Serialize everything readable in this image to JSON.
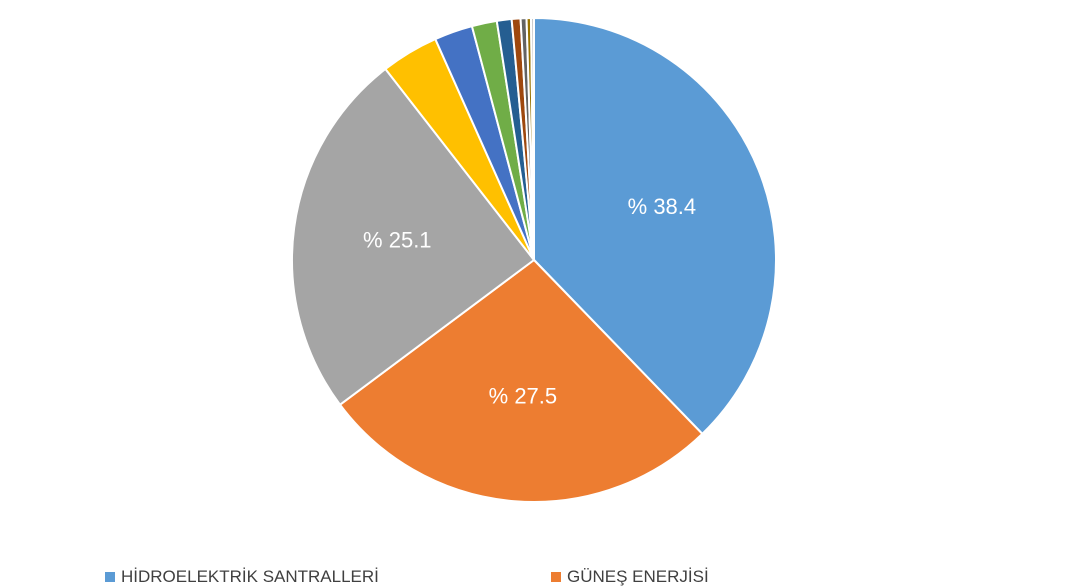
{
  "chart_data": {
    "type": "pie",
    "series": [
      {
        "name": "HİDROELEKTRİK SANTRALLERİ",
        "value": 38.4,
        "label": "% 38.4",
        "color": "#5B9BD5"
      },
      {
        "name": "GÜNEŞ ENERJİSİ",
        "value": 27.5,
        "label": "% 27.5",
        "color": "#ED7D31"
      },
      {
        "name": "",
        "value": 25.1,
        "label": "% 25.1",
        "color": "#A5A5A5"
      },
      {
        "name": "",
        "value": 3.9,
        "label": "",
        "color": "#FFC000"
      },
      {
        "name": "",
        "value": 2.6,
        "label": "",
        "color": "#4472C4"
      },
      {
        "name": "",
        "value": 1.7,
        "label": "",
        "color": "#70AD47"
      },
      {
        "name": "",
        "value": 1.0,
        "label": "",
        "color": "#255E91"
      },
      {
        "name": "",
        "value": 0.6,
        "label": "",
        "color": "#9E480E"
      },
      {
        "name": "",
        "value": 0.4,
        "label": "",
        "color": "#636363"
      },
      {
        "name": "",
        "value": 0.3,
        "label": "",
        "color": "#997300"
      },
      {
        "name": "",
        "value": 0.2,
        "label": "",
        "color": "#C9C9C9"
      }
    ],
    "legend_position": "bottom"
  },
  "legend": [
    {
      "label": "HİDROELEKTRİK SANTRALLERİ",
      "color": "#5B9BD5"
    },
    {
      "label": "GÜNEŞ ENERJİSİ",
      "color": "#ED7D31"
    }
  ]
}
